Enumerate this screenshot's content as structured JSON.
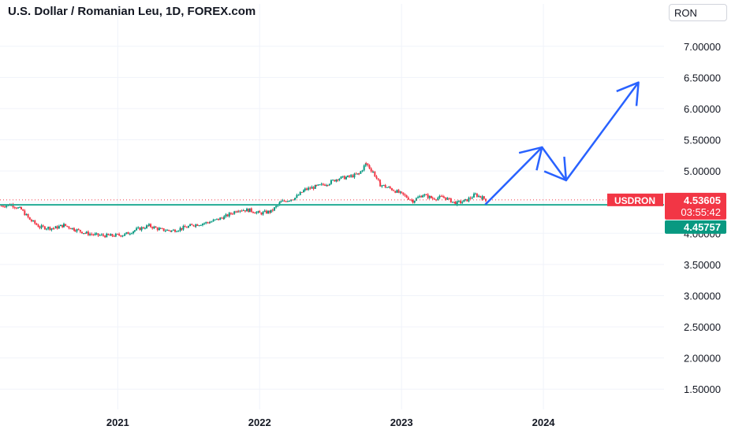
{
  "header": {
    "title": "U.S. Dollar / Romanian Leu, 1D, FOREX.com",
    "currency": "RON"
  },
  "price_labels": {
    "symbol": "USDRON",
    "last_price": "4.53605",
    "countdown": "03:55:42",
    "level_price": "4.45757"
  },
  "colors": {
    "background": "#ffffff",
    "grid": "#f0f3fa",
    "text": "#131722",
    "up_candle": "#089981",
    "down_candle": "#f23645",
    "horizontal_line": "#22ab94",
    "projection_arrow": "#2962ff",
    "last_price_badge": "#f23645",
    "level_badge": "#089981"
  },
  "chart_data": {
    "type": "candlestick",
    "title": "U.S. Dollar / Romanian Leu, 1D, FOREX.com",
    "interval": "1D",
    "y_axis": {
      "side": "right",
      "range": [
        1.2,
        7.3
      ],
      "ticks": [
        "7.00000",
        "6.50000",
        "6.00000",
        "5.50000",
        "5.00000",
        "4.50000",
        "4.00000",
        "3.50000",
        "3.00000",
        "2.50000",
        "2.00000",
        "1.50000"
      ]
    },
    "x_axis": {
      "ticks": [
        "2021",
        "2022",
        "2023",
        "2024"
      ],
      "range": [
        2020.17,
        2024.85
      ]
    },
    "grid": true,
    "series": [
      {
        "type": "candlestick",
        "points": [
          [
            2020.18,
            4.44
          ],
          [
            2020.25,
            4.46
          ],
          [
            2020.32,
            4.38
          ],
          [
            2020.38,
            4.22
          ],
          [
            2020.45,
            4.1
          ],
          [
            2020.55,
            4.08
          ],
          [
            2020.62,
            4.13
          ],
          [
            2020.7,
            4.06
          ],
          [
            2020.78,
            4.0
          ],
          [
            2020.85,
            3.97
          ],
          [
            2020.95,
            3.96
          ],
          [
            2021.05,
            3.98
          ],
          [
            2021.12,
            4.05
          ],
          [
            2021.22,
            4.12
          ],
          [
            2021.3,
            4.06
          ],
          [
            2021.38,
            4.04
          ],
          [
            2021.45,
            4.08
          ],
          [
            2021.55,
            4.14
          ],
          [
            2021.65,
            4.18
          ],
          [
            2021.75,
            4.26
          ],
          [
            2021.85,
            4.38
          ],
          [
            2021.93,
            4.37
          ],
          [
            2022.0,
            4.32
          ],
          [
            2022.08,
            4.35
          ],
          [
            2022.15,
            4.5
          ],
          [
            2022.25,
            4.57
          ],
          [
            2022.32,
            4.7
          ],
          [
            2022.4,
            4.75
          ],
          [
            2022.48,
            4.8
          ],
          [
            2022.55,
            4.88
          ],
          [
            2022.62,
            4.9
          ],
          [
            2022.7,
            4.95
          ],
          [
            2022.75,
            5.12
          ],
          [
            2022.8,
            4.98
          ],
          [
            2022.85,
            4.78
          ],
          [
            2022.92,
            4.72
          ],
          [
            2023.0,
            4.63
          ],
          [
            2023.08,
            4.52
          ],
          [
            2023.15,
            4.62
          ],
          [
            2023.22,
            4.56
          ],
          [
            2023.3,
            4.58
          ],
          [
            2023.38,
            4.48
          ],
          [
            2023.45,
            4.52
          ],
          [
            2023.52,
            4.62
          ],
          [
            2023.57,
            4.57
          ],
          [
            2023.6,
            4.53605
          ]
        ]
      },
      {
        "type": "horizontal_line",
        "value": 4.45757
      },
      {
        "type": "projection_arrow",
        "points": [
          [
            2023.59,
            4.46
          ],
          [
            2023.99,
            5.38
          ],
          [
            2024.16,
            4.85
          ],
          [
            2024.67,
            6.42
          ]
        ]
      }
    ],
    "last_value": 4.53605,
    "level_value": 4.45757
  }
}
